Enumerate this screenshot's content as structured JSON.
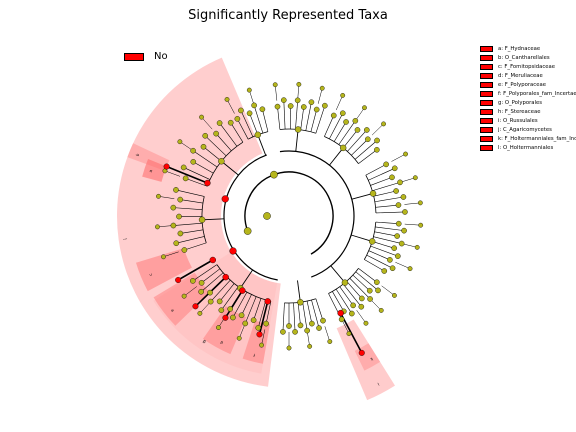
{
  "title": "Significantly Represented Taxa",
  "legend_group": {
    "label": "No",
    "color": "#ff0000"
  },
  "legend_items": [
    {
      "letter": "a",
      "label": "a: F_Hydnaceae"
    },
    {
      "letter": "b",
      "label": "b: O_Cantharellales"
    },
    {
      "letter": "c",
      "label": "c: F_Fomitopsidaceae"
    },
    {
      "letter": "d",
      "label": "d: F_Meruliaceae"
    },
    {
      "letter": "e",
      "label": "e: F_Polyporaceae"
    },
    {
      "letter": "f",
      "label": "f: F_Polyporales_fam_Incertae_sedis"
    },
    {
      "letter": "g",
      "label": "g: O_Polyporales"
    },
    {
      "letter": "h",
      "label": "h: F_Stereaceae"
    },
    {
      "letter": "i",
      "label": "i: O_Russulales"
    },
    {
      "letter": "j",
      "label": "j: C_Agaricomycetes"
    },
    {
      "letter": "k",
      "label": "k: F_Holtermanniales_fam_Incertae_sedis"
    },
    {
      "letter": "l",
      "label": "l: O_Holtermanniales"
    }
  ],
  "colors": {
    "enriched": "#ff0000",
    "neutral": "#b5b51c",
    "highlight": "#ffbdbd"
  }
}
